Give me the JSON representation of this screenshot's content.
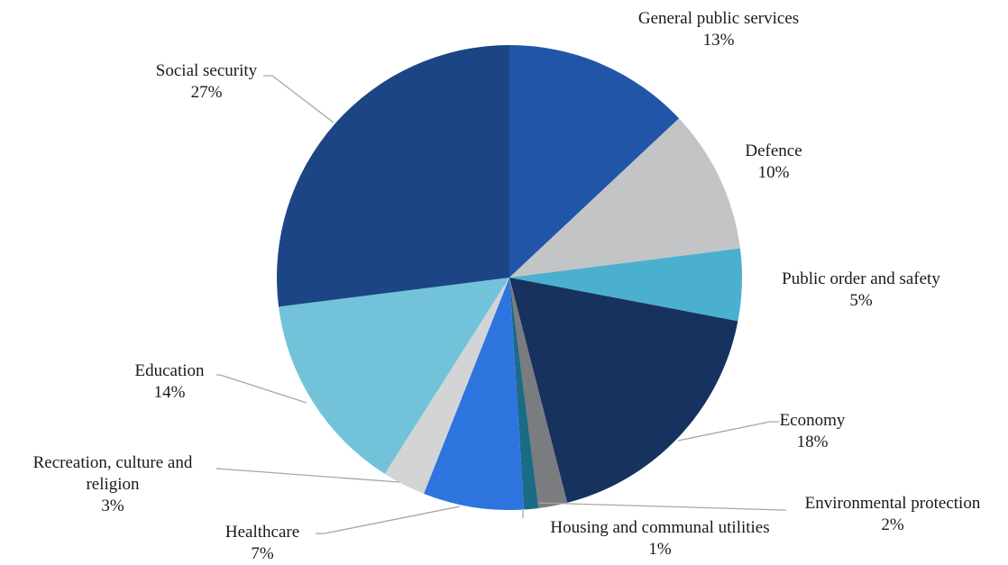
{
  "chart_data": {
    "type": "pie",
    "title": "",
    "start_angle_deg": 0,
    "direction": "clockwise",
    "slices": [
      {
        "label": "General public services",
        "value": 13,
        "value_label": "13%",
        "color": "#2155a8"
      },
      {
        "label": "Defence",
        "value": 10,
        "value_label": "10%",
        "color": "#c3c4c6"
      },
      {
        "label": "Public order and safety",
        "value": 5,
        "value_label": "5%",
        "color": "#4bb0cf"
      },
      {
        "label": "Economy",
        "value": 18,
        "value_label": "18%",
        "color": "#17325f"
      },
      {
        "label": "Environmental protection",
        "value": 2,
        "value_label": "2%",
        "color": "#7a7c80"
      },
      {
        "label": "Housing and communal utilities",
        "value": 1,
        "value_label": "1%",
        "color": "#1b6b87"
      },
      {
        "label": "Healthcare",
        "value": 7,
        "value_label": "7%",
        "color": "#2e74de"
      },
      {
        "label": "Recreation, culture and religion",
        "value": 3,
        "value_label": "3%",
        "color": "#d3d4d6"
      },
      {
        "label": "Education",
        "value": 14,
        "value_label": "14%",
        "color": "#72c3d9"
      },
      {
        "label": "Social security",
        "value": 27,
        "value_label": "27%",
        "color": "#1c4585"
      }
    ]
  }
}
